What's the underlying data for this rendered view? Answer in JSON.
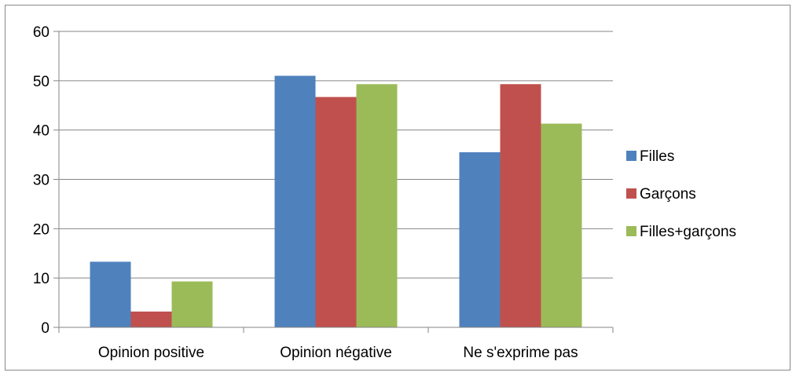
{
  "chart_data": {
    "type": "bar",
    "title": "",
    "xlabel": "",
    "ylabel": "",
    "categories": [
      "Opinion positive",
      "Opinion négative",
      "Ne s'exprime pas"
    ],
    "series": [
      {
        "name": "Filles",
        "values": [
          13.3,
          51.0,
          35.5
        ],
        "color": "#4F81BD"
      },
      {
        "name": "Garçons",
        "values": [
          3.2,
          46.7,
          49.3
        ],
        "color": "#C0504D"
      },
      {
        "name": "Filles+garçons",
        "values": [
          9.3,
          49.3,
          41.3
        ],
        "color": "#9BBB59"
      }
    ],
    "ylim": [
      0,
      60
    ],
    "yticks": [
      0,
      10,
      20,
      30,
      40,
      50,
      60
    ],
    "grid": true,
    "legend_position": "right"
  }
}
